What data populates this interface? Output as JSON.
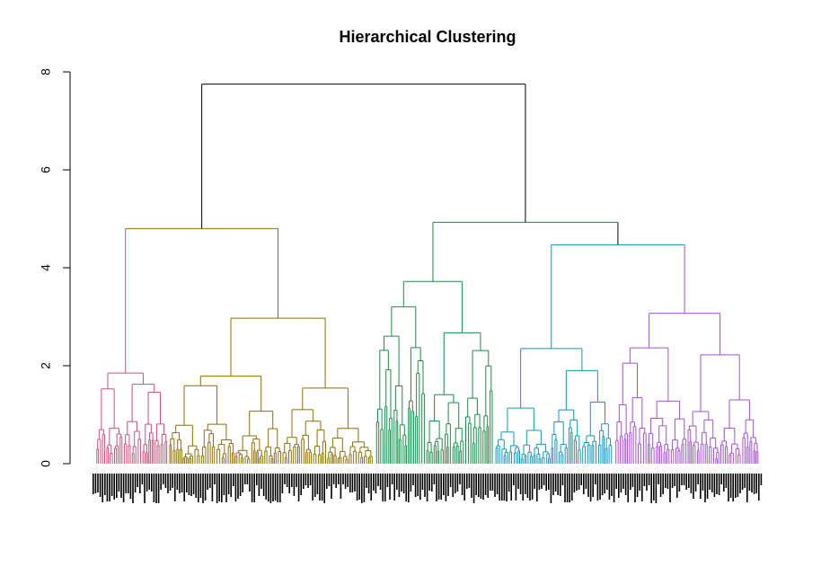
{
  "chart_data": {
    "type": "dendrogram",
    "title": "Hierarchical Clustering",
    "xlabel": "",
    "ylabel": "",
    "ylim": [
      0,
      8
    ],
    "y_ticks": [
      0,
      2,
      4,
      6,
      8
    ],
    "grid": false,
    "legend": "none",
    "leaf_labels": "dense, illegible",
    "root_height": 7.75,
    "clusters": [
      {
        "id": 1,
        "color": "#C8507A",
        "leaf_range": [
          0.0,
          0.11
        ],
        "subtree_heights": [
          1.85,
          1.55,
          1.3,
          1.05,
          0.95,
          0.85,
          0.6,
          0.45,
          0.3
        ]
      },
      {
        "id": 2,
        "color": "#8C6E0A",
        "leaf_range": [
          0.11,
          0.42
        ],
        "subtree_heights": [
          2.97,
          2.65,
          1.9,
          1.85,
          1.6,
          1.25,
          1.2,
          1.05,
          0.95,
          0.85,
          0.6,
          0.45,
          0.3
        ]
      },
      {
        "id": 3,
        "color": "#1C8A47",
        "leaf_range": [
          0.42,
          0.6
        ],
        "subtree_heights": [
          3.72,
          3.05,
          2.3,
          2.05,
          1.7,
          1.5,
          1.05,
          0.95,
          0.85,
          0.6,
          0.45,
          0.3
        ]
      },
      {
        "id": 4,
        "color": "#1893B5",
        "leaf_range": [
          0.6,
          0.78
        ],
        "subtree_heights": [
          2.35,
          1.98,
          1.65,
          1.5,
          1.1,
          0.95,
          0.85,
          0.6,
          0.45,
          0.3
        ]
      },
      {
        "id": 5,
        "color": "#A052C6",
        "leaf_range": [
          0.78,
          1.0
        ],
        "subtree_heights": [
          3.07,
          2.57,
          1.72,
          1.5,
          1.3,
          1.15,
          0.95,
          0.85,
          0.6,
          0.45,
          0.3
        ]
      }
    ],
    "merges": [
      {
        "left": 1,
        "right": 2,
        "height": 4.8,
        "color": "#C8507A"
      },
      {
        "left": 4,
        "right": 5,
        "height": 4.47,
        "color": "#1893B5"
      },
      {
        "left": 3,
        "right": "4+5",
        "height": 4.93,
        "color": "#1C8A47"
      },
      {
        "left": "3+4+5",
        "right": "root_right",
        "height": 4.93,
        "color": "#000000"
      },
      {
        "left": "1+2",
        "right": "3+4+5",
        "height": 7.75,
        "color": "#000000"
      }
    ]
  }
}
